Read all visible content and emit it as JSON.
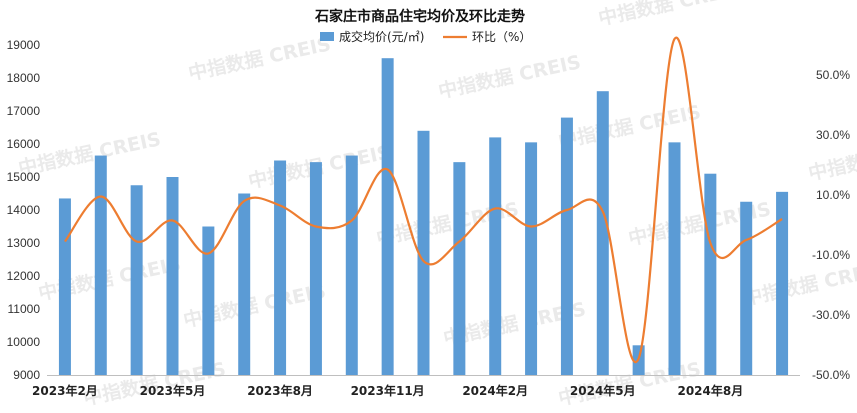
{
  "chart_data": {
    "type": "bar+line",
    "title": "石家庄市商品住宅均价及环比走势",
    "watermark": "中指数据 CREIS",
    "categories": [
      "2023-02",
      "2023-03",
      "2023-04",
      "2023-05",
      "2023-06",
      "2023-07",
      "2023-08",
      "2023-09",
      "2023-10",
      "2023-11",
      "2023-12",
      "2024-01",
      "2024-02",
      "2024-03",
      "2024-04",
      "2024-05",
      "2024-06",
      "2024-07",
      "2024-08",
      "2024-09",
      "2024-10"
    ],
    "x_tick_labels": [
      {
        "index": 0,
        "label": "2023年2月"
      },
      {
        "index": 3,
        "label": "2023年5月"
      },
      {
        "index": 6,
        "label": "2023年8月"
      },
      {
        "index": 9,
        "label": "2023年11月"
      },
      {
        "index": 12,
        "label": "2024年2月"
      },
      {
        "index": 15,
        "label": "2024年5月"
      },
      {
        "index": 18,
        "label": "2024年8月"
      }
    ],
    "series": [
      {
        "name": "成交均价(元/㎡)",
        "type": "bar",
        "axis": "left",
        "color": "#5b9bd5",
        "values": [
          14350,
          15650,
          14750,
          15000,
          13500,
          14500,
          15500,
          15450,
          15650,
          18600,
          16400,
          15450,
          16200,
          16050,
          16800,
          17600,
          9900,
          16050,
          15100,
          14250,
          14550
        ]
      },
      {
        "name": "环比（%）",
        "type": "line",
        "axis": "right",
        "color": "#ed7d31",
        "values": [
          -5.5,
          9.5,
          -5.5,
          1.5,
          -9.5,
          8.0,
          6.5,
          -0.5,
          1.5,
          18.5,
          -12.0,
          -5.5,
          5.5,
          -0.5,
          5.0,
          4.5,
          -44.5,
          62.0,
          -6.0,
          -5.0,
          2.0
        ]
      }
    ],
    "y_left": {
      "min": 9000,
      "max": 19000,
      "step": 1000
    },
    "y_right": {
      "min": -50,
      "max": 60,
      "ticks": [
        -50,
        -30,
        -10,
        10,
        30,
        50
      ],
      "tick_labels": [
        "-50.0%",
        "-30.0%",
        "-10.0%",
        "10.0%",
        "30.0%",
        "50.0%"
      ]
    },
    "grid": false,
    "legend_position": "top-center"
  }
}
